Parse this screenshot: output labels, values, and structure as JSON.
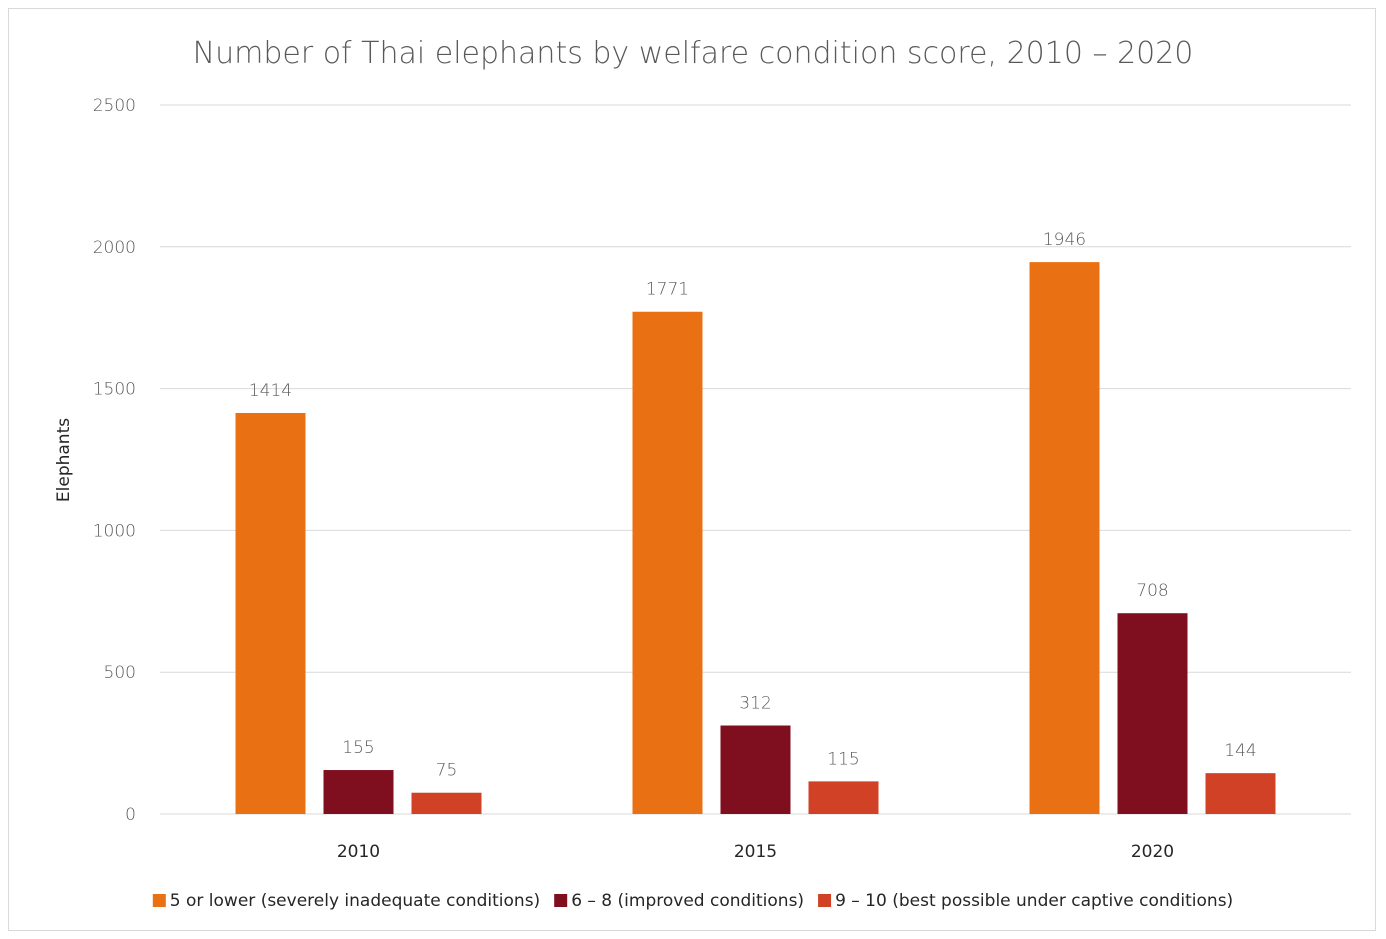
{
  "chart_data": {
    "type": "bar",
    "title": "Number of Thai elephants by welfare condition score, 2010 – 2020",
    "ylabel": "Elephants",
    "xlabel": "",
    "ylim": [
      0,
      2500
    ],
    "yticks": [
      0,
      500,
      1000,
      1500,
      2000,
      2500
    ],
    "grid": true,
    "legend_position": "bottom",
    "categories": [
      "2010",
      "2015",
      "2020"
    ],
    "series": [
      {
        "name": "5 or lower (severely inadequate conditions)",
        "values": [
          1414,
          1771,
          1946
        ],
        "color": "#E97113"
      },
      {
        "name": "6 – 8 (improved conditions)",
        "values": [
          155,
          312,
          708
        ],
        "color": "#7F0E1F"
      },
      {
        "name": "9 – 10 (best possible under captive conditions)",
        "values": [
          75,
          115,
          144
        ],
        "color": "#D04125"
      }
    ]
  }
}
